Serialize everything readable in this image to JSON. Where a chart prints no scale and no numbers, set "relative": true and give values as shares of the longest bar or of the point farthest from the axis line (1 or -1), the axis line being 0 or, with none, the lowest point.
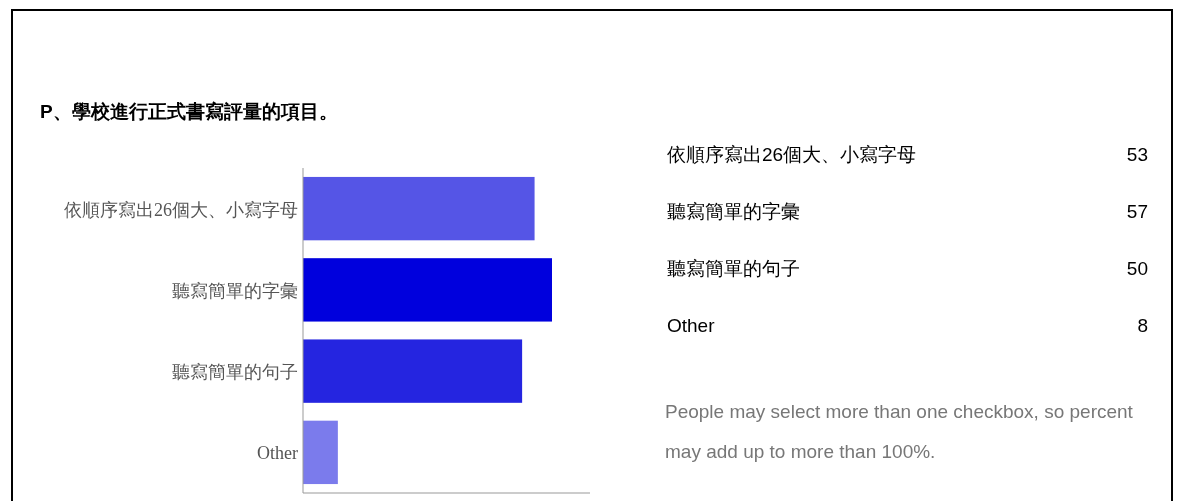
{
  "chart_data": [
    {
      "type": "bar",
      "orientation": "horizontal",
      "title": "P、學校進行正式書寫評量的項目。",
      "relative": true,
      "categories": [
        "依順序寫出26個大、小寫字母",
        "聽寫簡單的字彙",
        "聽寫簡單的句子",
        "Other"
      ],
      "values": [
        0.93,
        1,
        0.88,
        0.14
      ],
      "colors": [
        "#5555e6",
        "#0000dd",
        "#2525e0",
        "#7b7bec"
      ],
      "tick_labels": "y"
    },
    {
      "type": "other",
      "annotations": [
        "依順序寫出26個大、小寫字母",
        "53",
        "聽寫簡單的字彙",
        "57",
        "聽寫簡單的句子",
        "50",
        "Other",
        "8",
        "People may select more than one checkbox, so percent may add up to more than 100%."
      ]
    }
  ]
}
